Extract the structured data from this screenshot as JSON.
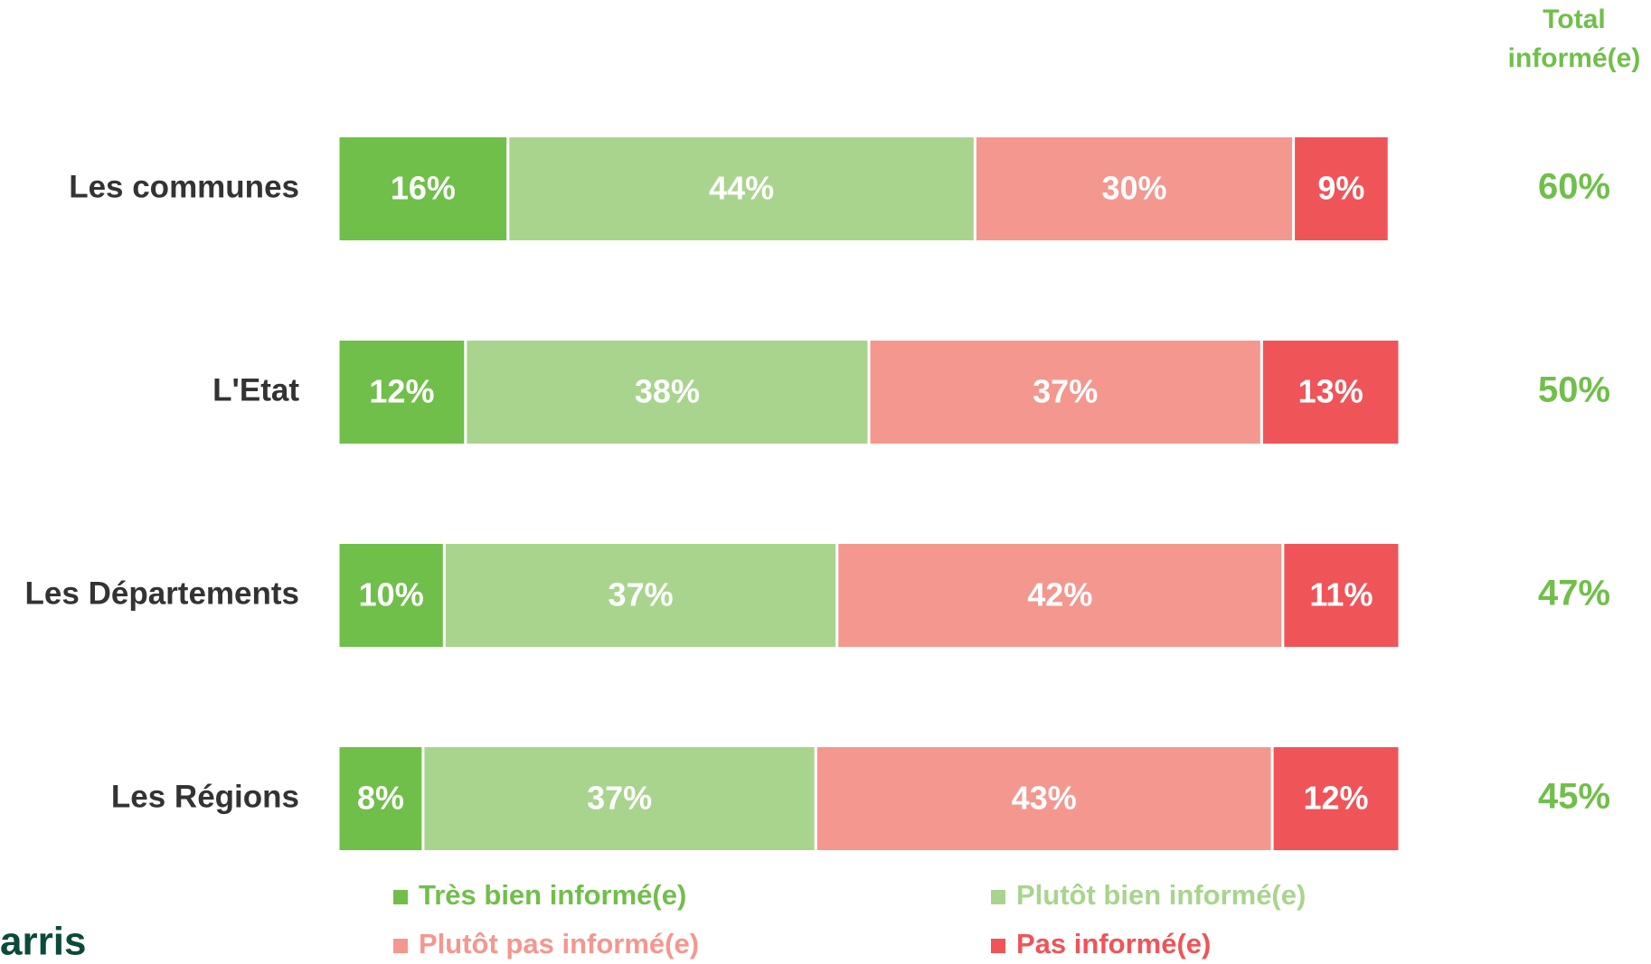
{
  "chart_data": {
    "type": "stacked-bar-horizontal",
    "categories": [
      "Les communes",
      "L'Etat",
      "Les Départements",
      "Les Régions"
    ],
    "xlim": [
      0,
      100
    ],
    "series": [
      {
        "name": "Très bien informé(e)",
        "color": "#70bf4a",
        "values": [
          16,
          12,
          10,
          8
        ],
        "value_labels": [
          "16%",
          "12%",
          "10%",
          "8%"
        ]
      },
      {
        "name": "Plutôt bien informé(e)",
        "color": "#a9d48e",
        "values": [
          44,
          38,
          37,
          37
        ],
        "value_labels": [
          "44%",
          "38%",
          "37%",
          "37%"
        ]
      },
      {
        "name": "Plutôt pas informé(e)",
        "color": "#f4978e",
        "values": [
          30,
          37,
          42,
          43
        ],
        "value_labels": [
          "30%",
          "37%",
          "42%",
          "43%"
        ]
      },
      {
        "name": "Pas informé(e)",
        "color": "#ef5459",
        "values": [
          9,
          13,
          11,
          12
        ],
        "value_labels": [
          "9%",
          "13%",
          "11%",
          "12%"
        ]
      }
    ],
    "total_header": [
      "Total",
      "informé(e)"
    ],
    "totals": {
      "color": "#70bf4a",
      "values": [
        60,
        50,
        47,
        45
      ],
      "value_labels": [
        "60%",
        "50%",
        "47%",
        "45%"
      ]
    },
    "logo": "arris"
  }
}
